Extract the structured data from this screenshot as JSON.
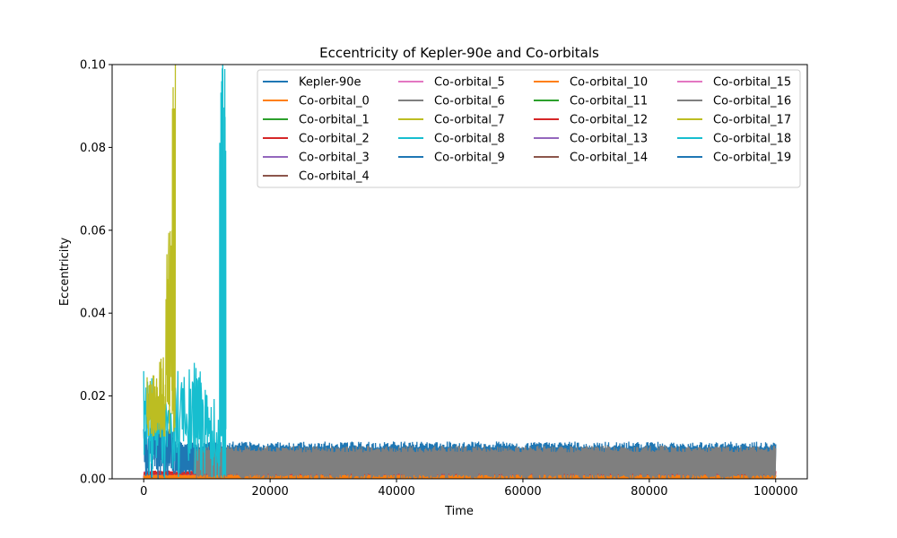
{
  "chart_data": {
    "type": "line",
    "title": "Eccentricity of Kepler-90e and Co-orbitals",
    "xlabel": "Time",
    "ylabel": "Eccentricity",
    "xlim": [
      -5000,
      105000
    ],
    "ylim": [
      0,
      0.1
    ],
    "xticks": [
      0,
      20000,
      40000,
      60000,
      80000,
      100000
    ],
    "xtick_labels": [
      "0",
      "20000",
      "40000",
      "60000",
      "80000",
      "100000"
    ],
    "yticks": [
      0,
      0.02,
      0.04,
      0.06,
      0.08,
      0.1
    ],
    "ytick_labels": [
      "0.00",
      "0.02",
      "0.04",
      "0.06",
      "0.08",
      "0.10"
    ],
    "grid": false,
    "legend_position": "upper-right",
    "legend_columns": 4,
    "series": [
      {
        "name": "Kepler-90e",
        "color": "#1f77b4",
        "segments": [
          {
            "x": [
              0,
              5000
            ],
            "y_min": 0.0,
            "y_max": 0.018,
            "points": [
              [
                0,
                0.012
              ],
              [
                1000,
                0.01
              ],
              [
                2000,
                0.016
              ],
              [
                3000,
                0.008
              ],
              [
                4000,
                0.012
              ],
              [
                5000,
                0.009
              ]
            ]
          },
          {
            "x": [
              5000,
              100000
            ],
            "y_min": 0.001,
            "y_max": 0.009,
            "points": []
          }
        ]
      },
      {
        "name": "Co-orbital_0",
        "color": "#ff7f0e",
        "segments": [
          {
            "x": [
              0,
              100000
            ],
            "y_min": 0.0,
            "y_max": 0.001,
            "points": []
          }
        ]
      },
      {
        "name": "Co-orbital_1",
        "color": "#2ca02c",
        "segments": [
          {
            "x": [
              0,
              100000
            ],
            "y_min": 0.0,
            "y_max": 0.001,
            "points": []
          }
        ]
      },
      {
        "name": "Co-orbital_2",
        "color": "#d62728",
        "segments": [
          {
            "x": [
              0,
              100000
            ],
            "y_min": 0.0,
            "y_max": 0.002,
            "points": []
          }
        ]
      },
      {
        "name": "Co-orbital_3",
        "color": "#9467bd",
        "segments": [
          {
            "x": [
              0,
              100000
            ],
            "y_min": 0.0,
            "y_max": 0.001,
            "points": []
          }
        ]
      },
      {
        "name": "Co-orbital_4",
        "color": "#8c564b",
        "segments": [
          {
            "x": [
              0,
              100000
            ],
            "y_min": 0.0,
            "y_max": 0.001,
            "points": []
          }
        ]
      },
      {
        "name": "Co-orbital_5",
        "color": "#e377c2",
        "segments": [
          {
            "x": [
              0,
              100000
            ],
            "y_min": 0.0,
            "y_max": 0.002,
            "points": []
          }
        ]
      },
      {
        "name": "Co-orbital_6",
        "color": "#7f7f7f",
        "segments": [
          {
            "x": [
              8000,
              100000
            ],
            "y_min": 0.0,
            "y_max": 0.008,
            "points": []
          }
        ]
      },
      {
        "name": "Co-orbital_7",
        "color": "#bcbd22",
        "segments": [
          {
            "x": [
              0,
              5000
            ],
            "y_min": 0.01,
            "y_max": 0.1,
            "points": [
              [
                500,
                0.015
              ],
              [
                1500,
                0.025
              ],
              [
                2500,
                0.02
              ],
              [
                3500,
                0.03
              ],
              [
                4500,
                0.06
              ],
              [
                5000,
                0.1
              ]
            ]
          }
        ]
      },
      {
        "name": "Co-orbital_8",
        "color": "#17becf",
        "segments": [
          {
            "x": [
              0,
              13000
            ],
            "y_min": 0.0,
            "y_max": 0.1,
            "points": [
              [
                0,
                0.026
              ],
              [
                2000,
                0.005
              ],
              [
                5000,
                0.022
              ],
              [
                8000,
                0.028
              ],
              [
                10000,
                0.02
              ],
              [
                12000,
                0.003
              ],
              [
                12500,
                0.1
              ],
              [
                13000,
                0.012
              ]
            ]
          }
        ]
      },
      {
        "name": "Co-orbital_9",
        "color": "#1f77b4",
        "segments": [
          {
            "x": [
              0,
              5000
            ],
            "y_min": 0.0,
            "y_max": 0.1,
            "points": [
              [
                4500,
                0.02
              ],
              [
                5000,
                0.1
              ]
            ]
          }
        ]
      },
      {
        "name": "Co-orbital_10",
        "color": "#ff7f0e",
        "segments": []
      },
      {
        "name": "Co-orbital_11",
        "color": "#2ca02c",
        "segments": []
      },
      {
        "name": "Co-orbital_12",
        "color": "#d62728",
        "segments": []
      },
      {
        "name": "Co-orbital_13",
        "color": "#9467bd",
        "segments": []
      },
      {
        "name": "Co-orbital_14",
        "color": "#8c564b",
        "segments": []
      },
      {
        "name": "Co-orbital_15",
        "color": "#e377c2",
        "segments": []
      },
      {
        "name": "Co-orbital_16",
        "color": "#7f7f7f",
        "segments": []
      },
      {
        "name": "Co-orbital_17",
        "color": "#bcbd22",
        "segments": []
      },
      {
        "name": "Co-orbital_18",
        "color": "#17becf",
        "segments": []
      },
      {
        "name": "Co-orbital_19",
        "color": "#1f77b4",
        "segments": []
      }
    ]
  }
}
